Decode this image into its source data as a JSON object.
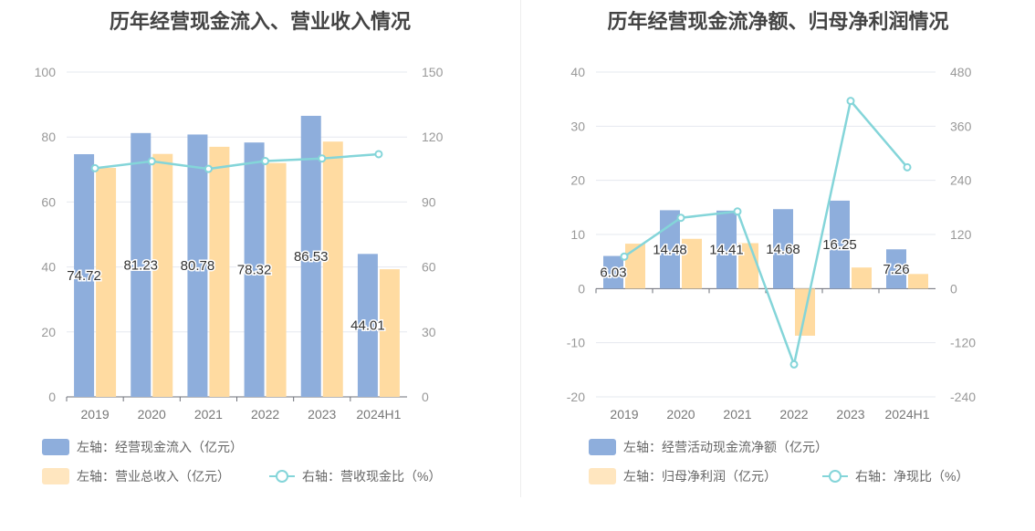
{
  "colors": {
    "bar_primary": "#8EAEDC",
    "bar_secondary": "#FFDBA1",
    "line": "#84D5D9",
    "grid": "#E5E8EF"
  },
  "chart_data": [
    {
      "type": "bar",
      "title": "历年经营现金流入、营业收入情况",
      "categories": [
        "2019",
        "2020",
        "2021",
        "2022",
        "2023",
        "2024H1"
      ],
      "yticks_left": [
        "0",
        "20",
        "40",
        "60",
        "80",
        "100"
      ],
      "yticks_right": [
        "0",
        "30",
        "60",
        "90",
        "120",
        "150"
      ],
      "ylim_left": [
        0,
        100
      ],
      "ylim_right": [
        0,
        150
      ],
      "grid": true,
      "legend_position": "bottom-left",
      "series": [
        {
          "name": "左轴：经营现金流入（亿元）",
          "kind": "bar",
          "axis": "left",
          "values": [
            74.72,
            81.23,
            80.78,
            78.32,
            86.53,
            44.01
          ],
          "labels": [
            "74.72",
            "81.23",
            "80.78",
            "78.32",
            "86.53",
            "44.01"
          ]
        },
        {
          "name": "左轴：营业总收入（亿元）",
          "kind": "bar",
          "axis": "left",
          "values": [
            70.5,
            74.8,
            77.0,
            72.0,
            78.6,
            39.3
          ]
        },
        {
          "name": "右轴：营收现金比（%）",
          "kind": "line",
          "axis": "right",
          "values": [
            105.6,
            108.8,
            105.3,
            108.9,
            110.1,
            112.1
          ]
        }
      ]
    },
    {
      "type": "bar",
      "title": "历年经营现金流净额、归母净利润情况",
      "categories": [
        "2019",
        "2020",
        "2021",
        "2022",
        "2023",
        "2024H1"
      ],
      "yticks_left": [
        "-20",
        "-10",
        "0",
        "10",
        "20",
        "30",
        "40"
      ],
      "yticks_right": [
        "-240",
        "-120",
        "0",
        "120",
        "240",
        "360",
        "480"
      ],
      "ylim_left": [
        -20,
        40
      ],
      "ylim_right": [
        -240,
        480
      ],
      "grid": true,
      "legend_position": "bottom-left",
      "series": [
        {
          "name": "左轴：经营活动现金流净额（亿元）",
          "kind": "bar",
          "axis": "left",
          "values": [
            6.03,
            14.48,
            14.41,
            14.68,
            16.25,
            7.26
          ],
          "labels": [
            "6.03",
            "14.48",
            "14.41",
            "14.68",
            "16.25",
            "7.26"
          ]
        },
        {
          "name": "左轴：归母净利润（亿元）",
          "kind": "bar",
          "axis": "left",
          "values": [
            8.3,
            9.2,
            8.4,
            -8.7,
            3.9,
            2.7
          ]
        },
        {
          "name": "右轴：净现比（%）",
          "kind": "line",
          "axis": "right",
          "values": [
            71,
            157,
            171,
            -168,
            416,
            269
          ]
        }
      ]
    }
  ]
}
